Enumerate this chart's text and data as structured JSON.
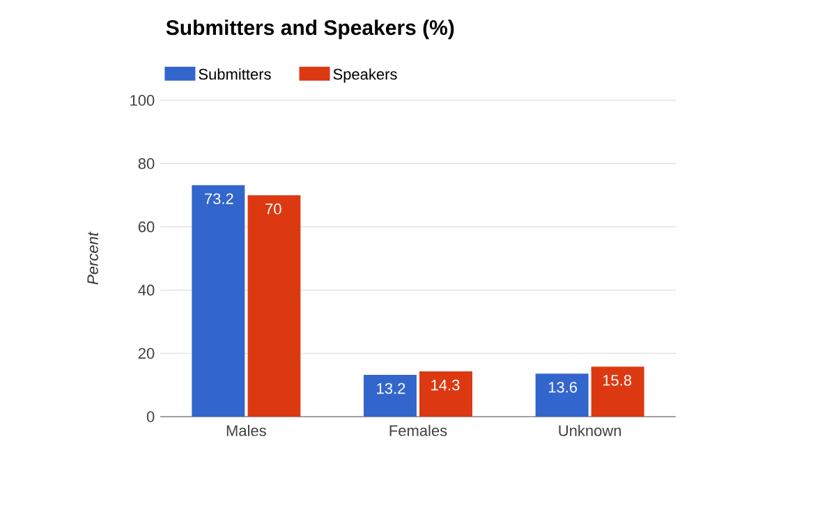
{
  "chart_data": {
    "type": "bar",
    "title": "Submitters and Speakers (%)",
    "ylabel": "Percent",
    "categories": [
      "Males",
      "Females",
      "Unknown"
    ],
    "series": [
      {
        "name": "Submitters",
        "color": "#3366cc",
        "values": [
          73.2,
          13.2,
          13.6
        ],
        "value_labels": [
          "73.2",
          "13.2",
          "13.6"
        ]
      },
      {
        "name": "Speakers",
        "color": "#dc3912",
        "values": [
          70,
          14.3,
          15.8
        ],
        "value_labels": [
          "70",
          "14.3",
          "15.8"
        ]
      }
    ],
    "ylim": [
      0,
      100
    ],
    "yticks": [
      0,
      20,
      40,
      60,
      80,
      100
    ],
    "grid": "y",
    "legend": "top left"
  }
}
